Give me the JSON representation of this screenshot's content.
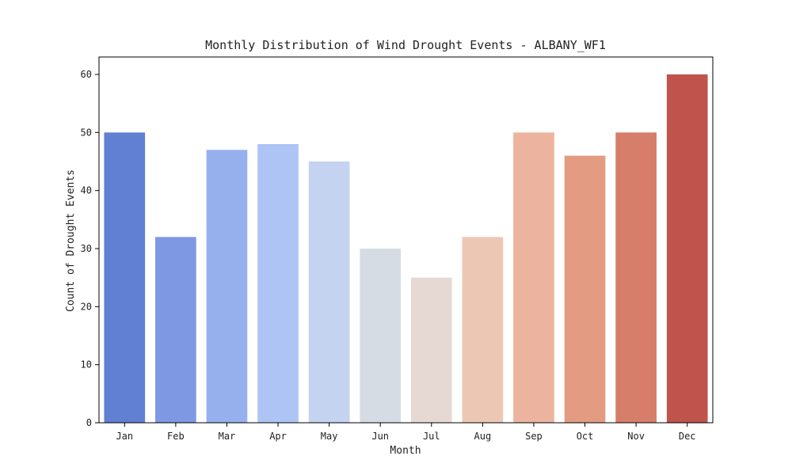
{
  "chart_data": {
    "type": "bar",
    "title": "Monthly Distribution of Wind Drought Events - ALBANY_WF1",
    "xlabel": "Month",
    "ylabel": "Count of Drought Events",
    "categories": [
      "Jan",
      "Feb",
      "Mar",
      "Apr",
      "May",
      "Jun",
      "Jul",
      "Aug",
      "Sep",
      "Oct",
      "Nov",
      "Dec"
    ],
    "values": [
      50,
      32,
      47,
      48,
      45,
      30,
      25,
      32,
      50,
      46,
      50,
      60
    ],
    "colors": [
      "#6180d4",
      "#7e98e4",
      "#96b0ee",
      "#adc4f5",
      "#c4d3f0",
      "#d6dce4",
      "#e6d9d4",
      "#ecc8b4",
      "#ecb49e",
      "#e39c82",
      "#d67e69",
      "#c0544c"
    ],
    "ylim": [
      0,
      63
    ],
    "yticks": [
      0,
      10,
      20,
      30,
      40,
      50,
      60
    ],
    "grid": false,
    "legend": "none"
  }
}
